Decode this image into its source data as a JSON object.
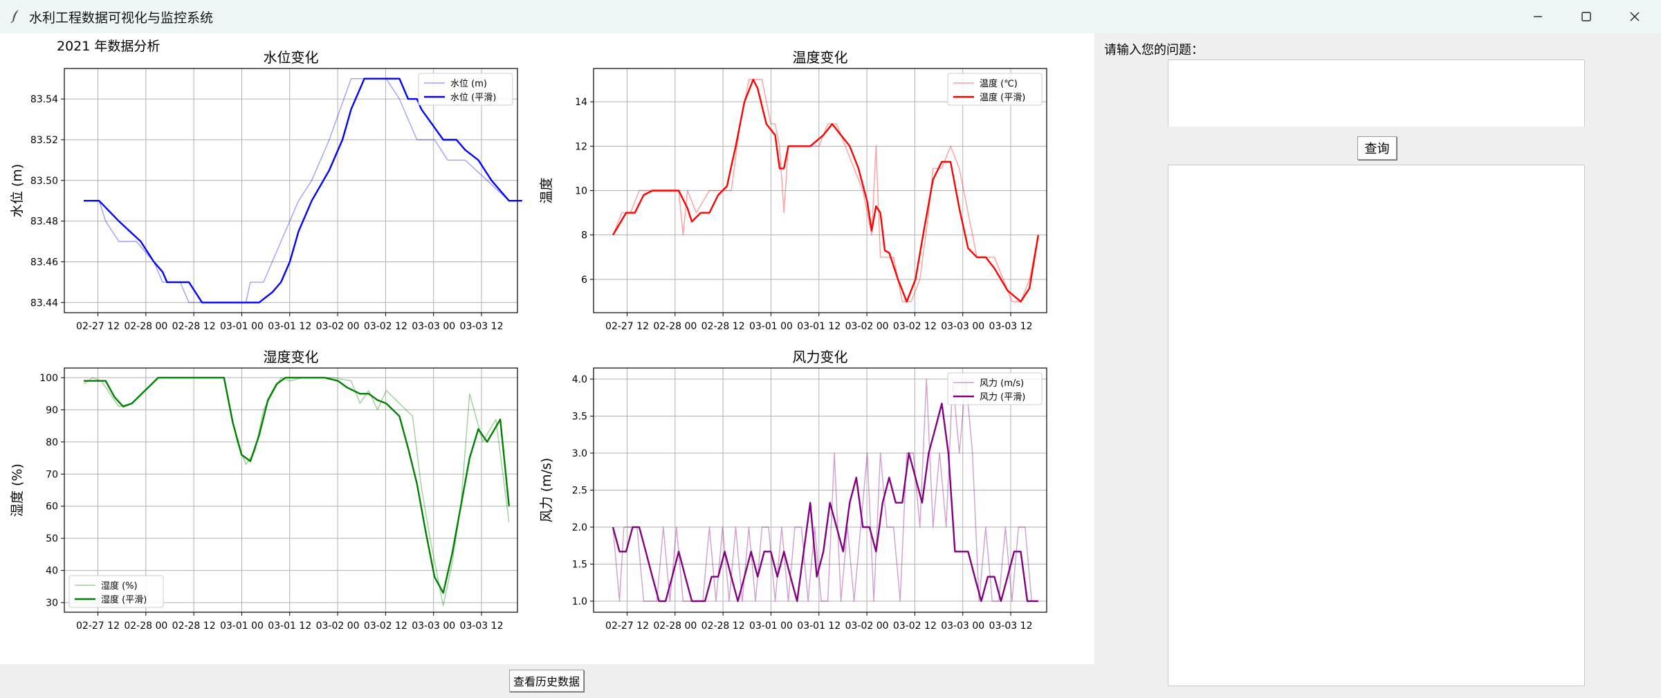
{
  "window": {
    "title": "水利工程数据可视化与监控系统",
    "icons": [
      "feather-icon",
      "minimize-icon",
      "maximize-icon",
      "close-icon"
    ]
  },
  "analysis_title": "2021 年数据分析",
  "right_panel": {
    "question_label": "请输入您的问题：",
    "question_value": "",
    "query_button": "查询",
    "answer_text": ""
  },
  "footer": {
    "history_button": "查看历史数据"
  },
  "colors": {
    "water": "#0000ff",
    "temp": "#ff0000",
    "humidity": "#008000",
    "wind": "#800080"
  },
  "chart_data": [
    {
      "type": "line",
      "title": "水位变化",
      "ylabel": "水位 (m)",
      "ylim": [
        83.435,
        83.555
      ],
      "yticks": [
        "83.44",
        "83.46",
        "83.48",
        "83.50",
        "83.52",
        "83.54"
      ],
      "xticks": [
        "02-27 12",
        "02-28 00",
        "02-28 12",
        "03-01 00",
        "03-01 12",
        "03-02 00",
        "03-02 12",
        "03-03 00",
        "03-03 12"
      ],
      "grid": true,
      "legend_loc": "upper right",
      "series": [
        {
          "name": "水位 (m)",
          "style": "raw",
          "x": [
            -0.7,
            -0.35,
            -0.2,
            0.1,
            0.3,
            0.5,
            0.9,
            1.1,
            1.2,
            1.5,
            1.7,
            2.0,
            2.6,
            3.0,
            3.1,
            3.4,
            3.6,
            3.8,
            4.0,
            4.2,
            4.5,
            4.9,
            5.4,
            5.7,
            5.9,
            6.2,
            6.5,
            6.9,
            7.0,
            7.3,
            7.6,
            8.0,
            8.5,
            9.0,
            9.3
          ],
          "y": [
            83.49,
            83.49,
            83.48,
            83.47,
            83.47,
            83.47,
            83.46,
            83.45,
            83.45,
            83.45,
            83.44,
            83.44,
            83.44,
            83.44,
            83.45,
            83.45,
            83.46,
            83.47,
            83.48,
            83.49,
            83.5,
            83.52,
            83.55,
            83.55,
            83.55,
            83.55,
            83.54,
            83.52,
            83.52,
            83.52,
            83.51,
            83.51,
            83.5,
            83.49,
            83.49
          ]
        },
        {
          "name": "水位 (平滑)",
          "style": "smooth",
          "x": [
            -0.7,
            -0.35,
            0.1,
            0.6,
            0.9,
            1.1,
            1.2,
            1.7,
            2.0,
            2.6,
            3.0,
            3.3,
            3.6,
            3.8,
            4.0,
            4.2,
            4.5,
            4.9,
            5.2,
            5.4,
            5.7,
            5.9,
            6.2,
            6.5,
            6.7,
            6.9,
            7.0,
            7.5,
            7.8,
            8.0,
            8.3,
            8.6,
            8.8,
            9.0,
            9.3
          ],
          "y": [
            83.49,
            83.49,
            83.48,
            83.47,
            83.46,
            83.455,
            83.45,
            83.45,
            83.44,
            83.44,
            83.44,
            83.44,
            83.445,
            83.45,
            83.46,
            83.475,
            83.49,
            83.505,
            83.52,
            83.535,
            83.55,
            83.55,
            83.55,
            83.55,
            83.54,
            83.54,
            83.535,
            83.52,
            83.52,
            83.515,
            83.51,
            83.5,
            83.495,
            83.49,
            83.49
          ]
        }
      ]
    },
    {
      "type": "line",
      "title": "温度变化",
      "ylabel": "温度",
      "ylim": [
        4.5,
        15.5
      ],
      "yticks": [
        "6",
        "8",
        "10",
        "12",
        "14"
      ],
      "xticks": [
        "02-27 12",
        "02-28 00",
        "02-28 12",
        "03-01 00",
        "03-01 12",
        "03-02 00",
        "03-02 12",
        "03-03 00",
        "03-03 12"
      ],
      "grid": true,
      "legend_loc": "upper right",
      "series": [
        {
          "name": "温度 (℃)",
          "style": "raw",
          "x": [
            -0.7,
            -0.5,
            -0.3,
            -0.1,
            0.0,
            0.2,
            0.5,
            0.8,
            0.9,
            1.0,
            1.2,
            1.5,
            1.7,
            2.0,
            2.2,
            2.4,
            2.5,
            2.7,
            2.9,
            3.0,
            3.1,
            3.2,
            3.3,
            3.5,
            3.8,
            4.0,
            4.2,
            4.4,
            4.6,
            4.8,
            5.0,
            5.2,
            5.3,
            5.4,
            5.5,
            5.7,
            5.9,
            6.1,
            6.3,
            6.5,
            6.6,
            6.8,
            7.0,
            7.2,
            7.4,
            7.6,
            7.8,
            8.0,
            8.2,
            8.4,
            8.6,
            8.8,
            9.0
          ],
          "y": [
            8,
            9,
            9,
            10,
            10,
            10,
            10,
            10,
            8,
            10,
            9,
            10,
            10,
            10,
            13,
            15,
            15,
            15,
            13,
            13,
            12,
            9,
            12,
            12,
            12,
            12,
            13,
            13,
            12,
            11,
            10,
            8,
            12,
            7,
            7,
            7,
            5,
            5,
            6,
            9,
            11,
            11,
            12,
            11,
            9,
            7,
            7,
            7,
            6,
            5,
            5,
            6,
            8
          ],
          "note": "y-values approximate"
        },
        {
          "name": "温度 (平滑)",
          "style": "smooth",
          "x": [
            -0.7,
            -0.4,
            -0.2,
            0.0,
            0.2,
            0.5,
            0.8,
            1.0,
            1.1,
            1.3,
            1.5,
            1.7,
            1.9,
            2.1,
            2.3,
            2.5,
            2.6,
            2.8,
            3.0,
            3.1,
            3.2,
            3.3,
            3.5,
            3.8,
            4.1,
            4.3,
            4.5,
            4.7,
            4.9,
            5.1,
            5.2,
            5.3,
            5.4,
            5.5,
            5.6,
            5.8,
            6.0,
            6.2,
            6.4,
            6.6,
            6.8,
            7.0,
            7.2,
            7.4,
            7.6,
            7.8,
            8.0,
            8.3,
            8.6,
            8.8,
            9.0
          ],
          "y": [
            8,
            9,
            9,
            9.8,
            10,
            10,
            10,
            9.2,
            8.6,
            9,
            9,
            9.8,
            10.2,
            12,
            14,
            15,
            14.6,
            13,
            12.5,
            11,
            11,
            12,
            12,
            12,
            12.5,
            13,
            12.5,
            12,
            11,
            9.5,
            8.2,
            9.3,
            9,
            7.3,
            7.2,
            6,
            5,
            6,
            8.3,
            10.5,
            11.3,
            11.3,
            9.2,
            7.4,
            7,
            7,
            6.5,
            5.5,
            5,
            5.6,
            8
          ]
        }
      ]
    },
    {
      "type": "line",
      "title": "湿度变化",
      "ylabel": "湿度 (%)",
      "ylim": [
        27,
        103
      ],
      "yticks": [
        "30",
        "40",
        "50",
        "60",
        "70",
        "80",
        "90",
        "100"
      ],
      "xticks": [
        "02-27 12",
        "02-28 00",
        "02-28 12",
        "03-01 00",
        "03-01 12",
        "03-02 00",
        "03-02 12",
        "03-03 00",
        "03-03 12"
      ],
      "grid": true,
      "legend_loc": "lower left",
      "series": [
        {
          "name": "湿度 (%)",
          "style": "raw",
          "x": [
            -0.7,
            -0.5,
            -0.3,
            -0.1,
            0.1,
            0.4,
            0.7,
            1.0,
            1.3,
            2.0,
            2.5,
            2.8,
            3.0,
            3.2,
            3.4,
            3.6,
            3.8,
            4.0,
            4.3,
            4.6,
            5.0,
            5.4,
            5.6,
            5.8,
            6.0,
            6.2,
            6.5,
            6.8,
            7.0,
            7.2,
            7.5,
            7.7,
            7.9,
            8.1,
            8.4,
            8.7,
            9.0
          ],
          "y": [
            98,
            100,
            99,
            95,
            91,
            92,
            96,
            100,
            100,
            100,
            100,
            80,
            73,
            77,
            90,
            95,
            100,
            99,
            100,
            100,
            100,
            99,
            92,
            96,
            90,
            96,
            92,
            88,
            66,
            50,
            29,
            42,
            60,
            95,
            80,
            87,
            55
          ]
        },
        {
          "name": "湿度 (平滑)",
          "style": "smooth",
          "x": [
            -0.7,
            -0.4,
            -0.2,
            0.0,
            0.2,
            0.4,
            0.7,
            1.0,
            1.3,
            2.0,
            2.5,
            2.7,
            2.9,
            3.1,
            3.3,
            3.5,
            3.7,
            3.9,
            4.2,
            4.5,
            4.8,
            5.1,
            5.3,
            5.6,
            5.8,
            6.0,
            6.2,
            6.5,
            6.7,
            6.9,
            7.1,
            7.3,
            7.5,
            7.7,
            7.9,
            8.1,
            8.3,
            8.5,
            8.8,
            9.0
          ],
          "y": [
            99,
            99,
            99,
            94,
            91,
            92,
            96,
            100,
            100,
            100,
            100,
            86,
            76,
            74,
            82,
            93,
            98,
            100,
            100,
            100,
            100,
            99,
            97,
            95,
            95,
            93,
            92,
            88,
            78,
            67,
            52,
            38,
            33,
            45,
            60,
            75,
            84,
            80,
            87,
            60
          ]
        }
      ]
    },
    {
      "type": "line",
      "title": "风力变化",
      "ylabel": "风力 (m/s)",
      "ylim": [
        0.85,
        4.15
      ],
      "yticks": [
        "1.0",
        "1.5",
        "2.0",
        "2.5",
        "3.0",
        "3.5",
        "4.0"
      ],
      "xticks": [
        "02-27 12",
        "02-28 00",
        "02-28 12",
        "03-01 00",
        "03-01 12",
        "03-02 00",
        "03-02 12",
        "03-03 00",
        "03-03 12"
      ],
      "grid": true,
      "legend_loc": "upper right",
      "series": [
        {
          "name": "风力 (m/s)",
          "style": "raw",
          "x": [
            -0.7,
            -0.55,
            -0.45,
            -0.3,
            -0.15,
            0.0,
            0.15,
            0.3,
            0.45,
            0.6,
            0.75,
            0.9,
            1.05,
            1.2,
            1.35,
            1.5,
            1.65,
            1.8,
            1.95,
            2.1,
            2.25,
            2.4,
            2.55,
            2.7,
            2.85,
            3.0,
            3.15,
            3.3,
            3.45,
            3.6,
            3.75,
            3.9,
            4.05,
            4.2,
            4.35,
            4.5,
            4.65,
            4.8,
            4.95,
            5.1,
            5.25,
            5.4,
            5.55,
            5.7,
            5.85,
            6.0,
            6.15,
            6.3,
            6.45,
            6.6,
            6.75,
            6.9,
            7.05,
            7.2,
            7.35,
            7.5,
            7.65,
            7.8,
            7.95,
            8.1,
            8.25,
            8.4,
            8.55,
            8.7,
            8.85,
            9.0
          ],
          "y": [
            2,
            1,
            2,
            2,
            2,
            1,
            1,
            1,
            2,
            1,
            2,
            1,
            1,
            1,
            1,
            2,
            1,
            2,
            1,
            2,
            1,
            2,
            1,
            2,
            2,
            1,
            2,
            1,
            2,
            2,
            1,
            2,
            1,
            1,
            3,
            1,
            2,
            1,
            2,
            3,
            1,
            3,
            2,
            2,
            1,
            3,
            3,
            2,
            4,
            2,
            3,
            2,
            4,
            3,
            4,
            3,
            1,
            2,
            1,
            1,
            2,
            1,
            2,
            2,
            1,
            1
          ],
          "note": "y-values approximate"
        },
        {
          "name": "风力 (平滑)",
          "style": "smooth",
          "x": [
            -0.7,
            -0.55,
            -0.4,
            -0.25,
            -0.1,
            0.05,
            0.2,
            0.35,
            0.5,
            0.65,
            0.8,
            0.95,
            1.1,
            1.25,
            1.4,
            1.55,
            1.7,
            1.85,
            2.0,
            2.15,
            2.3,
            2.45,
            2.6,
            2.75,
            2.9,
            3.05,
            3.2,
            3.35,
            3.5,
            3.65,
            3.8,
            3.95,
            4.1,
            4.25,
            4.4,
            4.55,
            4.7,
            4.85,
            5.0,
            5.15,
            5.3,
            5.45,
            5.6,
            5.75,
            5.9,
            6.05,
            6.2,
            6.35,
            6.5,
            6.65,
            6.8,
            6.95,
            7.1,
            7.25,
            7.4,
            7.55,
            7.7,
            7.85,
            8.0,
            8.15,
            8.3,
            8.45,
            8.6,
            8.75,
            8.9,
            9.0
          ],
          "y": [
            2,
            1.67,
            1.67,
            2,
            2,
            1.67,
            1.33,
            1,
            1,
            1.33,
            1.67,
            1.33,
            1,
            1,
            1,
            1.33,
            1.33,
            1.67,
            1.33,
            1,
            1.33,
            1.67,
            1.33,
            1.67,
            1.67,
            1.33,
            1.67,
            1.33,
            1,
            1.67,
            2.33,
            1.33,
            1.67,
            2.33,
            2,
            1.67,
            2.33,
            2.67,
            2,
            2,
            1.67,
            2.33,
            2.67,
            2.33,
            2.33,
            3,
            2.67,
            2.33,
            3,
            3.33,
            3.67,
            3,
            1.67,
            1.67,
            1.67,
            1.33,
            1,
            1.33,
            1.33,
            1,
            1.33,
            1.67,
            1.67,
            1,
            1,
            1
          ]
        }
      ]
    }
  ]
}
